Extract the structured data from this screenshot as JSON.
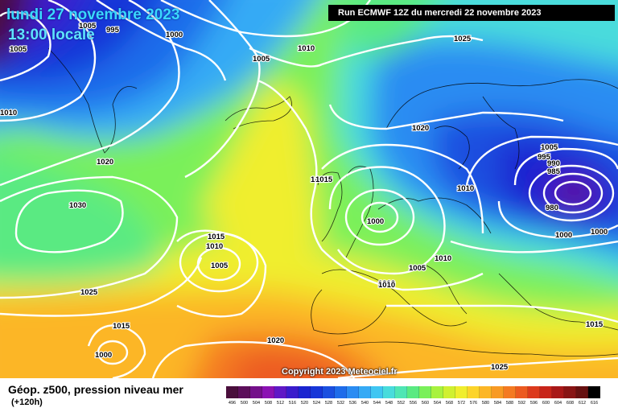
{
  "header": {
    "date": "lundi 27 novembre 2023",
    "time": "13:00 locale",
    "run": "Run ECMWF 12Z du mercredi 22 novembre 2023"
  },
  "copyright": "Copyright 2023 Meteociel.fr",
  "legend": {
    "title": "Géop. z500, pression niveau mer",
    "subtitle": "(+120h)",
    "scale_values": [
      "496",
      "500",
      "504",
      "508",
      "512",
      "516",
      "520",
      "524",
      "528",
      "532",
      "536",
      "540",
      "544",
      "548",
      "552",
      "556",
      "560",
      "564",
      "568",
      "572",
      "576",
      "580",
      "584",
      "588",
      "592",
      "596",
      "600",
      "604",
      "608",
      "612",
      "616"
    ],
    "scale_colors": [
      "#4a0f3c",
      "#5c0f5a",
      "#74108a",
      "#8b12b3",
      "#6018c6",
      "#3a1ccc",
      "#1a24d0",
      "#1636d8",
      "#1a4fe0",
      "#1e6cea",
      "#2a8cf2",
      "#35aaf5",
      "#3fc6f2",
      "#48dcdc",
      "#4fe6b4",
      "#5aea82",
      "#7af05a",
      "#a8f23e",
      "#d0f030",
      "#f0ee2e",
      "#fcd42a",
      "#fcb626",
      "#f89a24",
      "#f47a22",
      "#ec5a20",
      "#dc3a1c",
      "#c8241a",
      "#a81818",
      "#881414",
      "#661010",
      "#000000"
    ]
  },
  "isobar_labels": [
    "1005",
    "995",
    "1000",
    "1005",
    "1025",
    "1005",
    "1010",
    "1020",
    "1010",
    "1030",
    "1025",
    "1015",
    "1015",
    "1010",
    "1005",
    "1020",
    "1015",
    "1005",
    "1010",
    "1000",
    "990",
    "995",
    "985",
    "980",
    "1000",
    "1000",
    "1015",
    "1010",
    "1020",
    "1015",
    "1010",
    "1000",
    "1005",
    "1010",
    "1025"
  ]
}
